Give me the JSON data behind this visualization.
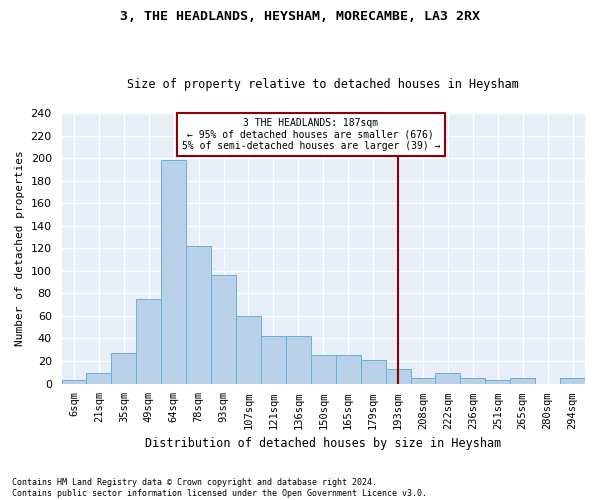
{
  "title": "3, THE HEADLANDS, HEYSHAM, MORECAMBE, LA3 2RX",
  "subtitle": "Size of property relative to detached houses in Heysham",
  "xlabel": "Distribution of detached houses by size in Heysham",
  "ylabel": "Number of detached properties",
  "bar_color": "#b8d0e8",
  "bar_edge_color": "#6baed6",
  "background_color": "#e8eef8",
  "grid_color": "#ffffff",
  "bin_labels": [
    "6sqm",
    "21sqm",
    "35sqm",
    "49sqm",
    "64sqm",
    "78sqm",
    "93sqm",
    "107sqm",
    "121sqm",
    "136sqm",
    "150sqm",
    "165sqm",
    "179sqm",
    "193sqm",
    "208sqm",
    "222sqm",
    "236sqm",
    "251sqm",
    "265sqm",
    "280sqm",
    "294sqm"
  ],
  "bar_values": [
    3,
    9,
    27,
    75,
    198,
    122,
    96,
    60,
    42,
    42,
    25,
    25,
    21,
    13,
    5,
    9,
    5,
    3,
    5,
    0,
    5
  ],
  "vline_x_index": 13.0,
  "annotation_title": "3 THE HEADLANDS: 187sqm",
  "annotation_line1": "← 95% of detached houses are smaller (676)",
  "annotation_line2": "5% of semi-detached houses are larger (39) →",
  "ylim": [
    0,
    240
  ],
  "yticks": [
    0,
    20,
    40,
    60,
    80,
    100,
    120,
    140,
    160,
    180,
    200,
    220,
    240
  ],
  "footnote1": "Contains HM Land Registry data © Crown copyright and database right 2024.",
  "footnote2": "Contains public sector information licensed under the Open Government Licence v3.0."
}
